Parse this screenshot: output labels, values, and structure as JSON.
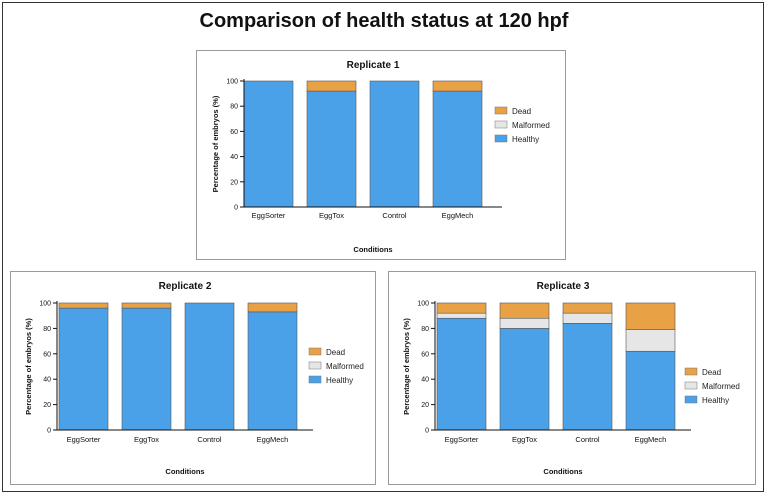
{
  "title": "Comparison of health status at 120 hpf",
  "colors": {
    "Healthy": "#4ba1e8",
    "Malformed": "#e6e6e6",
    "Dead": "#e9a146"
  },
  "chart_data": [
    {
      "type": "bar",
      "stacked": true,
      "title": "Replicate 1",
      "xlabel": "Conditions",
      "ylabel": "Percentage of embryos (%)",
      "ylim": [
        0,
        100
      ],
      "yticks": [
        0,
        20,
        40,
        60,
        80,
        100
      ],
      "legend_position": "right",
      "categories": [
        "EggSorter",
        "EggTox",
        "Control",
        "EggMech"
      ],
      "series": [
        {
          "name": "Dead",
          "values": [
            0,
            8,
            0,
            8
          ]
        },
        {
          "name": "Malformed",
          "values": [
            0,
            0,
            0,
            0
          ]
        },
        {
          "name": "Healthy",
          "values": [
            100,
            92,
            100,
            92
          ]
        }
      ]
    },
    {
      "type": "bar",
      "stacked": true,
      "title": "Replicate 2",
      "xlabel": "Conditions",
      "ylabel": "Percentage of embryos (%)",
      "ylim": [
        0,
        100
      ],
      "yticks": [
        0,
        20,
        40,
        60,
        80,
        100
      ],
      "legend_position": "right",
      "categories": [
        "EggSorter",
        "EggTox",
        "Control",
        "EggMech"
      ],
      "series": [
        {
          "name": "Dead",
          "values": [
            4,
            4,
            0,
            7
          ]
        },
        {
          "name": "Malformed",
          "values": [
            0,
            0,
            0,
            0
          ]
        },
        {
          "name": "Healthy",
          "values": [
            96,
            96,
            100,
            93
          ]
        }
      ]
    },
    {
      "type": "bar",
      "stacked": true,
      "title": "Replicate 3",
      "xlabel": "Conditions",
      "ylabel": "Percentage of embryos (%)",
      "ylim": [
        0,
        100
      ],
      "yticks": [
        0,
        20,
        40,
        60,
        80,
        100
      ],
      "legend_position": "right",
      "categories": [
        "EggSorter",
        "EggTox",
        "Control",
        "EggMech"
      ],
      "series": [
        {
          "name": "Dead",
          "values": [
            8,
            12,
            8,
            21
          ]
        },
        {
          "name": "Malformed",
          "values": [
            4,
            8,
            8,
            17
          ]
        },
        {
          "name": "Healthy",
          "values": [
            88,
            80,
            84,
            62
          ]
        }
      ]
    }
  ]
}
